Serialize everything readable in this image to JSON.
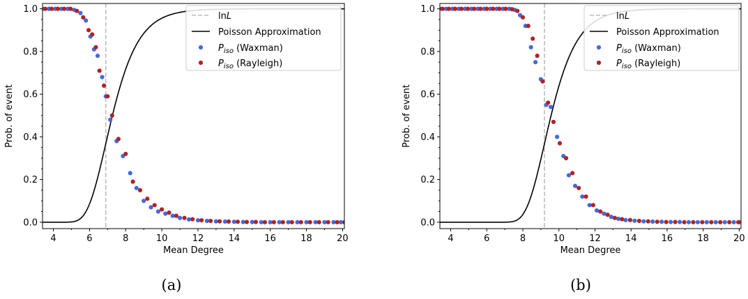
{
  "colors": {
    "waxman": "#4169e1",
    "rayleigh": "#b22222",
    "poisson": "#000000",
    "ln_line": "#bbbbbb"
  },
  "chart_data": [
    {
      "type": "scatter",
      "caption": "(a)",
      "xlabel": "Mean Degree",
      "ylabel": "Prob. of event",
      "xlim": [
        3.4,
        20.1
      ],
      "ylim": [
        -0.03,
        1.025
      ],
      "xticks": [
        4,
        6,
        8,
        10,
        12,
        14,
        16,
        18,
        20
      ],
      "yticks": [
        0.0,
        0.2,
        0.4,
        0.6,
        0.8,
        1.0
      ],
      "ytick_labels": [
        "0.0",
        "0.2",
        "0.4",
        "0.6",
        "0.8",
        "1.0"
      ],
      "grid": false,
      "legend_position": "top-right",
      "legend": {
        "ln_prefix": "ln",
        "ln_var": "L",
        "poisson": "Poisson Approximation",
        "p_sym": "P",
        "p_sub": "iso",
        "waxman_suffix": " (Waxman)",
        "rayleigh_suffix": " (Rayleigh)"
      },
      "vline_x": 6.9,
      "poisson_lambda": 6.9,
      "series": [
        {
          "name": "P_iso (Waxman)",
          "color_key": "waxman",
          "points": [
            [
              3.4,
              1.0
            ],
            [
              3.75,
              1.0
            ],
            [
              4.1,
              1.0
            ],
            [
              4.45,
              1.0
            ],
            [
              4.8,
              1.0
            ],
            [
              5.15,
              0.995
            ],
            [
              5.5,
              0.98
            ],
            [
              5.8,
              0.945
            ],
            [
              6.05,
              0.87
            ],
            [
              6.25,
              0.81
            ],
            [
              6.45,
              0.78
            ],
            [
              6.7,
              0.68
            ],
            [
              6.9,
              0.59
            ],
            [
              7.15,
              0.48
            ],
            [
              7.5,
              0.38
            ],
            [
              7.85,
              0.31
            ],
            [
              8.25,
              0.23
            ],
            [
              8.6,
              0.16
            ],
            [
              9.0,
              0.1
            ],
            [
              9.4,
              0.07
            ],
            [
              9.8,
              0.05
            ],
            [
              10.2,
              0.04
            ],
            [
              10.6,
              0.03
            ],
            [
              11.0,
              0.02
            ],
            [
              11.5,
              0.013
            ],
            [
              12.0,
              0.009
            ],
            [
              12.5,
              0.006
            ],
            [
              13.0,
              0.004
            ],
            [
              13.5,
              0.003
            ],
            [
              14.0,
              0.002
            ],
            [
              14.5,
              0.001
            ],
            [
              15.0,
              0.001
            ],
            [
              15.5,
              0.0
            ],
            [
              16.0,
              0.0
            ],
            [
              16.5,
              0.0
            ],
            [
              17.0,
              0.0
            ],
            [
              17.5,
              0.0
            ],
            [
              18.0,
              0.0
            ],
            [
              18.5,
              0.0
            ],
            [
              19.0,
              0.0
            ],
            [
              19.5,
              0.0
            ],
            [
              19.9,
              0.0
            ]
          ]
        },
        {
          "name": "P_iso (Rayleigh)",
          "color_key": "rayleigh",
          "points": [
            [
              3.55,
              1.0
            ],
            [
              3.9,
              1.0
            ],
            [
              4.25,
              1.0
            ],
            [
              4.6,
              1.0
            ],
            [
              4.95,
              1.0
            ],
            [
              5.3,
              0.99
            ],
            [
              5.65,
              0.96
            ],
            [
              5.95,
              0.9
            ],
            [
              6.15,
              0.88
            ],
            [
              6.35,
              0.82
            ],
            [
              6.55,
              0.71
            ],
            [
              6.8,
              0.64
            ],
            [
              7.0,
              0.59
            ],
            [
              7.25,
              0.5
            ],
            [
              7.6,
              0.39
            ],
            [
              8.0,
              0.32
            ],
            [
              8.4,
              0.19
            ],
            [
              8.8,
              0.15
            ],
            [
              9.2,
              0.11
            ],
            [
              9.6,
              0.08
            ],
            [
              10.0,
              0.06
            ],
            [
              10.4,
              0.045
            ],
            [
              10.8,
              0.03
            ],
            [
              11.25,
              0.02
            ],
            [
              11.7,
              0.014
            ],
            [
              12.2,
              0.009
            ],
            [
              12.7,
              0.006
            ],
            [
              13.2,
              0.004
            ],
            [
              13.7,
              0.003
            ],
            [
              14.2,
              0.002
            ],
            [
              14.7,
              0.001
            ],
            [
              15.2,
              0.001
            ],
            [
              15.7,
              0.0
            ],
            [
              16.2,
              0.0
            ],
            [
              16.7,
              0.0
            ],
            [
              17.2,
              0.0
            ],
            [
              17.7,
              0.0
            ],
            [
              18.2,
              0.0
            ],
            [
              18.7,
              0.0
            ],
            [
              19.2,
              0.0
            ],
            [
              19.7,
              0.0
            ],
            [
              20.1,
              0.0
            ]
          ]
        }
      ]
    },
    {
      "type": "scatter",
      "caption": "(b)",
      "xlabel": "Mean Degree",
      "ylabel": "Prob. of event",
      "xlim": [
        3.4,
        20.1
      ],
      "ylim": [
        -0.03,
        1.025
      ],
      "xticks": [
        4,
        6,
        8,
        10,
        12,
        14,
        16,
        18,
        20
      ],
      "yticks": [
        0.0,
        0.2,
        0.4,
        0.6,
        0.8,
        1.0
      ],
      "ytick_labels": [
        "0.0",
        "0.2",
        "0.4",
        "0.6",
        "0.8",
        "1.0"
      ],
      "grid": false,
      "legend_position": "top-right",
      "legend": {
        "ln_prefix": "ln",
        "ln_var": "L",
        "poisson": "Poisson Approximation",
        "p_sym": "P",
        "p_sub": "iso",
        "waxman_suffix": " (Waxman)",
        "rayleigh_suffix": " (Rayleigh)"
      },
      "vline_x": 9.2,
      "poisson_lambda": 9.2,
      "series": [
        {
          "name": "P_iso (Waxman)",
          "color_key": "waxman",
          "points": [
            [
              3.4,
              1.0
            ],
            [
              3.75,
              1.0
            ],
            [
              4.1,
              1.0
            ],
            [
              4.45,
              1.0
            ],
            [
              4.8,
              1.0
            ],
            [
              5.15,
              1.0
            ],
            [
              5.5,
              1.0
            ],
            [
              5.85,
              1.0
            ],
            [
              6.2,
              1.0
            ],
            [
              6.55,
              1.0
            ],
            [
              6.9,
              1.0
            ],
            [
              7.25,
              1.0
            ],
            [
              7.55,
              0.995
            ],
            [
              7.85,
              0.97
            ],
            [
              8.15,
              0.92
            ],
            [
              8.45,
              0.82
            ],
            [
              8.7,
              0.75
            ],
            [
              9.0,
              0.67
            ],
            [
              9.3,
              0.55
            ],
            [
              9.55,
              0.54
            ],
            [
              9.9,
              0.4
            ],
            [
              10.25,
              0.31
            ],
            [
              10.55,
              0.22
            ],
            [
              10.9,
              0.17
            ],
            [
              11.3,
              0.12
            ],
            [
              11.7,
              0.08
            ],
            [
              12.1,
              0.055
            ],
            [
              12.5,
              0.04
            ],
            [
              12.9,
              0.025
            ],
            [
              13.3,
              0.016
            ],
            [
              13.7,
              0.01
            ],
            [
              14.2,
              0.007
            ],
            [
              14.7,
              0.004
            ],
            [
              15.2,
              0.003
            ],
            [
              15.7,
              0.002
            ],
            [
              16.2,
              0.001
            ],
            [
              16.7,
              0.001
            ],
            [
              17.2,
              0.0
            ],
            [
              17.7,
              0.0
            ],
            [
              18.2,
              0.0
            ],
            [
              18.7,
              0.0
            ],
            [
              19.2,
              0.0
            ],
            [
              19.7,
              0.0
            ],
            [
              20.0,
              0.0
            ]
          ]
        },
        {
          "name": "P_iso (Rayleigh)",
          "color_key": "rayleigh",
          "points": [
            [
              3.55,
              1.0
            ],
            [
              3.9,
              1.0
            ],
            [
              4.25,
              1.0
            ],
            [
              4.6,
              1.0
            ],
            [
              4.95,
              1.0
            ],
            [
              5.3,
              1.0
            ],
            [
              5.65,
              1.0
            ],
            [
              6.0,
              1.0
            ],
            [
              6.35,
              1.0
            ],
            [
              6.7,
              1.0
            ],
            [
              7.05,
              1.0
            ],
            [
              7.4,
              0.998
            ],
            [
              7.7,
              0.99
            ],
            [
              8.0,
              0.96
            ],
            [
              8.3,
              0.92
            ],
            [
              8.55,
              0.86
            ],
            [
              8.8,
              0.78
            ],
            [
              9.1,
              0.66
            ],
            [
              9.4,
              0.56
            ],
            [
              9.7,
              0.47
            ],
            [
              10.05,
              0.37
            ],
            [
              10.4,
              0.3
            ],
            [
              10.75,
              0.23
            ],
            [
              11.1,
              0.16
            ],
            [
              11.5,
              0.12
            ],
            [
              11.9,
              0.08
            ],
            [
              12.3,
              0.05
            ],
            [
              12.7,
              0.035
            ],
            [
              13.1,
              0.02
            ],
            [
              13.5,
              0.014
            ],
            [
              13.95,
              0.01
            ],
            [
              14.45,
              0.006
            ],
            [
              14.95,
              0.004
            ],
            [
              15.45,
              0.002
            ],
            [
              15.95,
              0.001
            ],
            [
              16.45,
              0.001
            ],
            [
              16.95,
              0.0
            ],
            [
              17.45,
              0.0
            ],
            [
              17.95,
              0.0
            ],
            [
              18.45,
              0.0
            ],
            [
              18.95,
              0.0
            ],
            [
              19.45,
              0.0
            ],
            [
              19.95,
              0.0
            ]
          ]
        }
      ]
    }
  ]
}
